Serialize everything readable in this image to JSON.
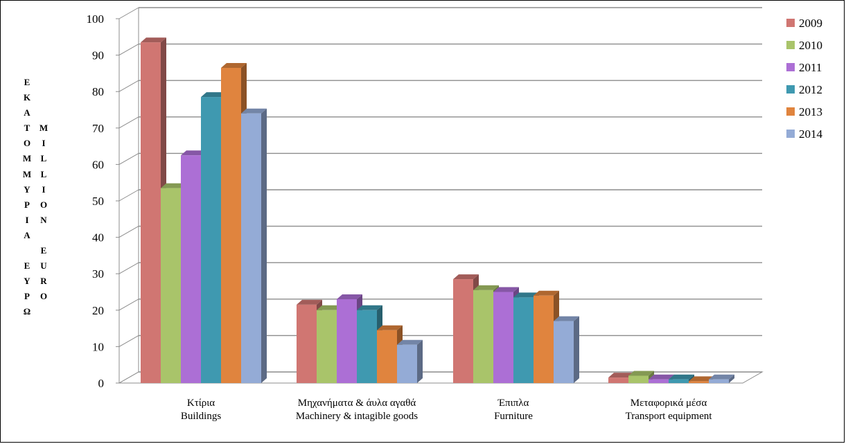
{
  "ylabel_gr": [
    "Ε",
    "Κ",
    "Α",
    "Τ",
    "Ο",
    "Μ",
    "Μ",
    "Υ",
    "Ρ",
    "Ι",
    "Α",
    "",
    "Ε",
    "Υ",
    "Ρ",
    "Ω"
  ],
  "ylabel_en": [
    "",
    "",
    "",
    "M",
    "I",
    "L",
    "L",
    "I",
    "O",
    "N",
    "",
    "E",
    "U",
    "R",
    "O"
  ],
  "chart_data": {
    "type": "bar",
    "title": "",
    "categories": [
      [
        "Κτίρια",
        "Buildings"
      ],
      [
        "Μηχανήματα & άυλα αγαθά",
        "Machinery & intagible goods"
      ],
      [
        "Έπιπλα",
        "Furniture"
      ],
      [
        "Μεταφορικά μέσα",
        "Transport equipment"
      ]
    ],
    "ylim": [
      0,
      100
    ],
    "yticks": [
      0,
      10,
      20,
      30,
      40,
      50,
      60,
      70,
      80,
      90,
      100
    ],
    "ylabel": "ΕΚΑΤΟΜΜΥΡΙΑ ΕΥΡΩ / MILLION EURO",
    "grid": true,
    "legend": "right",
    "series": [
      {
        "name": "2009",
        "color": "#d07672",
        "values": [
          93.5,
          21.5,
          28.5,
          1.5
        ]
      },
      {
        "name": "2010",
        "color": "#a9c46a",
        "values": [
          53.5,
          20,
          25.5,
          2
        ]
      },
      {
        "name": "2011",
        "color": "#ac6fd5",
        "values": [
          62.5,
          23,
          25,
          1
        ]
      },
      {
        "name": "2012",
        "color": "#3f99b0",
        "values": [
          78.5,
          20,
          23.5,
          1
        ]
      },
      {
        "name": "2013",
        "color": "#e0843e",
        "values": [
          86.5,
          14.5,
          24,
          0.5
        ]
      },
      {
        "name": "2014",
        "color": "#94abd6",
        "values": [
          74,
          10.5,
          17,
          1
        ]
      }
    ]
  }
}
